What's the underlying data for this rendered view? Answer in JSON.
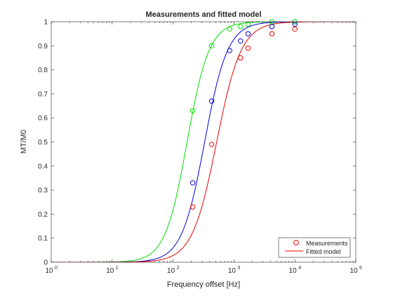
{
  "chart_data": {
    "type": "line",
    "title": "Measurements and fitted model",
    "xlabel": "Frequency offset [Hz]",
    "ylabel": "MT/M0",
    "xscale": "log",
    "xlim": [
      1,
      100000
    ],
    "ylim": [
      0,
      1
    ],
    "xticks": [
      1,
      10,
      100,
      1000,
      10000,
      100000
    ],
    "xtick_labels": [
      {
        "base": "10",
        "exp": "0"
      },
      {
        "base": "10",
        "exp": "1"
      },
      {
        "base": "10",
        "exp": "2"
      },
      {
        "base": "10",
        "exp": "3"
      },
      {
        "base": "10",
        "exp": "4"
      },
      {
        "base": "10",
        "exp": "5"
      }
    ],
    "yticks": [
      0,
      0.1,
      0.2,
      0.3,
      0.4,
      0.5,
      0.6,
      0.7,
      0.8,
      0.9,
      1
    ],
    "ytick_labels": [
      "0",
      "0.1",
      "0.2",
      "0.3",
      "0.4",
      "0.5",
      "0.6",
      "0.7",
      "0.8",
      "0.9",
      "1"
    ],
    "grid": false,
    "legend": {
      "position": "bottom-right",
      "entries": [
        {
          "label": "Measurements",
          "marker": "circle",
          "color": "#ff0000"
        },
        {
          "label": "Fitted model",
          "marker": "line",
          "color": "#ff0000"
        }
      ]
    },
    "series": [
      {
        "color": "#00dd00",
        "measurements": {
          "x": [
            210,
            430,
            850,
            1280,
            1700,
            4200,
            10000
          ],
          "y": [
            0.63,
            0.9,
            0.97,
            0.98,
            0.99,
            1.0,
            1.0
          ]
        },
        "fit": {
          "x50": 170,
          "slope": 2.4
        }
      },
      {
        "color": "#0000dd",
        "measurements": {
          "x": [
            210,
            430,
            850,
            1280,
            1700,
            4200,
            10000
          ],
          "y": [
            0.33,
            0.67,
            0.88,
            0.92,
            0.95,
            0.98,
            0.99
          ]
        },
        "fit": {
          "x50": 330,
          "slope": 2.3
        }
      },
      {
        "color": "#ee0000",
        "measurements": {
          "x": [
            210,
            430,
            1280,
            1700,
            4200,
            10000
          ],
          "y": [
            0.23,
            0.49,
            0.85,
            0.89,
            0.95,
            0.97
          ]
        },
        "fit": {
          "x50": 520,
          "slope": 2.15
        }
      }
    ]
  }
}
